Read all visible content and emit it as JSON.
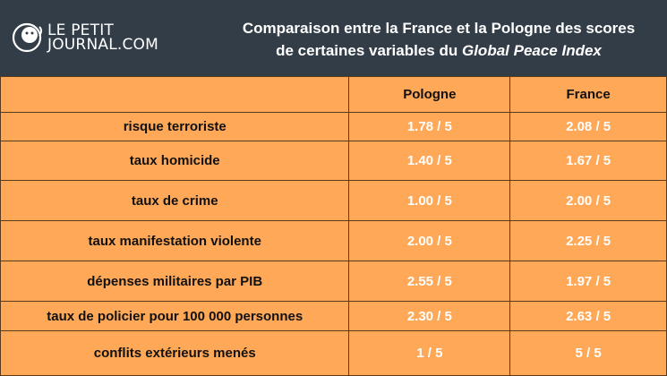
{
  "logo": {
    "line1": "LE PETIT",
    "line2": "JOURNAL.COM"
  },
  "title": {
    "line1": "Comparaison entre la France et la Pologne des scores",
    "line2_prefix": "de certaines variables du ",
    "line2_italic": "Global Peace Index"
  },
  "table": {
    "headers": [
      "",
      "Pologne",
      "France"
    ],
    "rows": [
      {
        "label": "risque terroriste",
        "pologne": "1.78 / 5",
        "france": "2.08 / 5"
      },
      {
        "label": "taux homicide",
        "pologne": "1.40 / 5",
        "france": "1.67 / 5"
      },
      {
        "label": "taux de crime",
        "pologne": "1.00 / 5",
        "france": "2.00 / 5"
      },
      {
        "label": "taux manifestation violente",
        "pologne": "2.00 / 5",
        "france": "2.25 / 5"
      },
      {
        "label": "dépenses militaires par PIB",
        "pologne": "2.55 / 5",
        "france": "1.97 / 5"
      },
      {
        "label": "taux de policier pour 100 000 personnes",
        "pologne": "2.30 / 5",
        "france": "2.63 / 5"
      },
      {
        "label": "conflits extérieurs menés",
        "pologne": "1 / 5",
        "france": "5 / 5"
      }
    ]
  },
  "colors": {
    "header_bg": "#333d48",
    "table_bg": "#ffa857",
    "value_text": "#ffffff"
  }
}
